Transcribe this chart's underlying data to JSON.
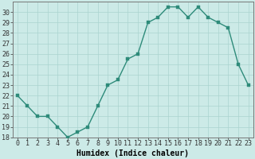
{
  "x": [
    0,
    1,
    2,
    3,
    4,
    5,
    6,
    7,
    8,
    9,
    10,
    11,
    12,
    13,
    14,
    15,
    16,
    17,
    18,
    19,
    20,
    21,
    22,
    23
  ],
  "y": [
    22,
    21,
    20,
    20,
    19,
    18,
    18.5,
    19,
    21,
    23,
    23.5,
    25.5,
    26,
    29,
    29.5,
    30.5,
    30.5,
    29.5,
    30.5,
    29.5,
    29,
    28.5,
    25,
    23
  ],
  "line_color": "#2e8b7a",
  "marker_color": "#2e8b7a",
  "bg_color": "#cceae7",
  "grid_color": "#aad4d0",
  "xlabel": "Humidex (Indice chaleur)",
  "xlim": [
    -0.5,
    23.5
  ],
  "ylim": [
    18,
    31
  ],
  "yticks": [
    18,
    19,
    20,
    21,
    22,
    23,
    24,
    25,
    26,
    27,
    28,
    29,
    30
  ],
  "xticks": [
    0,
    1,
    2,
    3,
    4,
    5,
    6,
    7,
    8,
    9,
    10,
    11,
    12,
    13,
    14,
    15,
    16,
    17,
    18,
    19,
    20,
    21,
    22,
    23
  ],
  "xlabel_fontsize": 7,
  "tick_fontsize": 6,
  "marker_size": 2.5,
  "line_width": 1.0
}
